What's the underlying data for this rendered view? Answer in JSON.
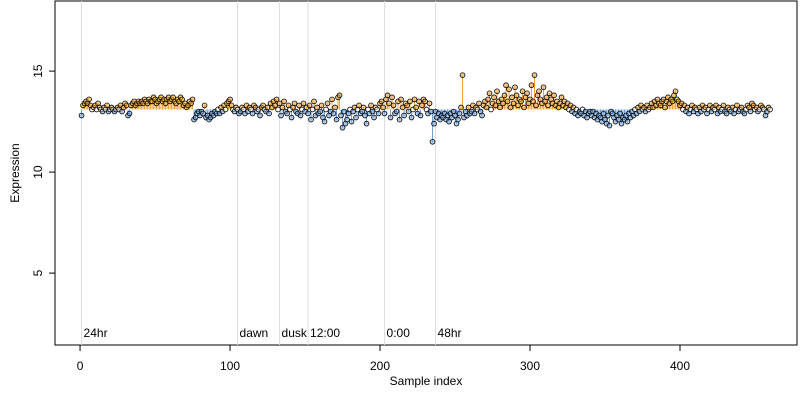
{
  "chart_data": {
    "type": "lollipop",
    "x_label": "Sample index",
    "y_label": "Expression",
    "xlim": [
      -16.7,
      478
    ],
    "ylim": [
      1.44,
      18.47
    ],
    "xticks": [
      0,
      100,
      200,
      300,
      400
    ],
    "yticks": [
      5,
      10,
      15
    ],
    "baseline": 13.1,
    "up_color": "#f0a030",
    "down_color": "#6fa0d8",
    "event_color": "#dddddd",
    "event_label_color": "#aaaaaa",
    "events": [
      {
        "x": 1,
        "label": "24hr"
      },
      {
        "x": 105,
        "label": "dawn"
      },
      {
        "x": 133,
        "label": "dusk"
      },
      {
        "x": 152,
        "label": "12:00"
      },
      {
        "x": 203,
        "label": "0:00"
      },
      {
        "x": 237,
        "label": "48hr"
      }
    ],
    "x": [
      1,
      2,
      3,
      4,
      5,
      6,
      7,
      8,
      9,
      10,
      11,
      12,
      13,
      14,
      15,
      16,
      17,
      18,
      19,
      20,
      21,
      22,
      23,
      24,
      25,
      26,
      27,
      28,
      29,
      30,
      31,
      32,
      33,
      34,
      35,
      36,
      37,
      38,
      39,
      40,
      41,
      42,
      43,
      44,
      45,
      46,
      47,
      48,
      49,
      50,
      51,
      52,
      53,
      54,
      55,
      56,
      57,
      58,
      59,
      60,
      61,
      62,
      63,
      64,
      65,
      66,
      67,
      68,
      69,
      70,
      71,
      72,
      73,
      74,
      75,
      76,
      77,
      78,
      79,
      80,
      81,
      82,
      83,
      84,
      85,
      86,
      87,
      88,
      89,
      90,
      91,
      92,
      93,
      94,
      95,
      96,
      97,
      98,
      99,
      100,
      101,
      102,
      103,
      104,
      105,
      106,
      107,
      108,
      109,
      110,
      111,
      112,
      113,
      114,
      115,
      116,
      117,
      118,
      119,
      120,
      121,
      122,
      123,
      124,
      125,
      126,
      127,
      128,
      129,
      130,
      131,
      132,
      133,
      134,
      135,
      136,
      137,
      138,
      139,
      140,
      141,
      142,
      143,
      144,
      145,
      146,
      147,
      148,
      149,
      150,
      151,
      152,
      153,
      154,
      155,
      156,
      157,
      158,
      159,
      160,
      161,
      162,
      163,
      164,
      165,
      166,
      167,
      168,
      169,
      170,
      171,
      172,
      173,
      174,
      175,
      176,
      177,
      178,
      179,
      180,
      181,
      182,
      183,
      184,
      185,
      186,
      187,
      188,
      189,
      190,
      191,
      192,
      193,
      194,
      195,
      196,
      197,
      198,
      199,
      200,
      201,
      202,
      203,
      204,
      205,
      206,
      207,
      208,
      209,
      210,
      211,
      212,
      213,
      214,
      215,
      216,
      217,
      218,
      219,
      220,
      221,
      222,
      223,
      224,
      225,
      226,
      227,
      228,
      229,
      230,
      231,
      232,
      233,
      234,
      235,
      236,
      237,
      238,
      239,
      240,
      241,
      242,
      243,
      244,
      245,
      246,
      247,
      248,
      249,
      250,
      251,
      252,
      253,
      254,
      255,
      256,
      257,
      258,
      259,
      260,
      261,
      262,
      263,
      264,
      265,
      266,
      267,
      268,
      269,
      270,
      271,
      272,
      273,
      274,
      275,
      276,
      277,
      278,
      279,
      280,
      281,
      282,
      283,
      284,
      285,
      286,
      287,
      288,
      289,
      290,
      291,
      292,
      293,
      294,
      295,
      296,
      297,
      298,
      299,
      300,
      301,
      302,
      303,
      304,
      305,
      306,
      307,
      308,
      309,
      310,
      311,
      312,
      313,
      314,
      315,
      316,
      317,
      318,
      319,
      320,
      321,
      322,
      323,
      324,
      325,
      326,
      327,
      328,
      329,
      330,
      331,
      332,
      333,
      334,
      335,
      336,
      337,
      338,
      339,
      340,
      341,
      342,
      343,
      344,
      345,
      346,
      347,
      348,
      349,
      350,
      351,
      352,
      353,
      354,
      355,
      356,
      357,
      358,
      359,
      360,
      361,
      362,
      363,
      364,
      365,
      366,
      367,
      368,
      369,
      370,
      371,
      372,
      373,
      374,
      375,
      376,
      377,
      378,
      379,
      380,
      381,
      382,
      383,
      384,
      385,
      386,
      387,
      388,
      389,
      390,
      391,
      392,
      393,
      394,
      395,
      396,
      397,
      398,
      399,
      400,
      401,
      402,
      403,
      404,
      405,
      406,
      407,
      408,
      409,
      410,
      411,
      412,
      413,
      414,
      415,
      416,
      417,
      418,
      419,
      420,
      421,
      422,
      423,
      424,
      425,
      426,
      427,
      428,
      429,
      430,
      431,
      432,
      433,
      434,
      435,
      436,
      437,
      438,
      439,
      440,
      441,
      442,
      443,
      444,
      445,
      446,
      447,
      448,
      449,
      450,
      451,
      452,
      453,
      454,
      455,
      456,
      457,
      458,
      459,
      460
    ],
    "values": [
      12.8,
      13.3,
      13.4,
      13.5,
      13.4,
      13.6,
      13.3,
      13.1,
      13.2,
      13.3,
      13.1,
      13.4,
      13.2,
      13.1,
      13.0,
      13.2,
      13.1,
      13.3,
      13.0,
      13.1,
      13.2,
      13.1,
      13.0,
      13.1,
      13.2,
      13.1,
      13.3,
      13.0,
      13.2,
      13.4,
      13.3,
      12.8,
      12.9,
      13.3,
      13.4,
      13.5,
      13.3,
      13.4,
      13.5,
      13.4,
      13.5,
      13.4,
      13.6,
      13.5,
      13.4,
      13.6,
      13.5,
      13.5,
      13.7,
      13.6,
      13.4,
      13.5,
      13.6,
      13.7,
      13.5,
      13.6,
      13.4,
      13.6,
      13.7,
      13.5,
      13.6,
      13.7,
      13.5,
      13.4,
      13.6,
      13.5,
      13.7,
      13.6,
      13.3,
      13.4,
      13.2,
      13.3,
      13.5,
      13.4,
      13.6,
      12.6,
      12.7,
      12.9,
      13.0,
      12.8,
      13.0,
      12.9,
      13.3,
      12.7,
      12.8,
      12.6,
      12.7,
      12.9,
      12.8,
      13.0,
      12.9,
      13.1,
      12.9,
      13.2,
      13.0,
      13.3,
      13.1,
      13.4,
      13.5,
      13.6,
      13.3,
      13.1,
      13.0,
      13.2,
      13.1,
      12.9,
      13.0,
      13.2,
      13.1,
      12.9,
      13.3,
      13.0,
      13.2,
      13.1,
      12.9,
      13.3,
      13.2,
      13.0,
      13.1,
      12.8,
      13.2,
      13.3,
      13.1,
      13.0,
      13.2,
      12.9,
      13.4,
      13.2,
      13.5,
      13.3,
      13.6,
      13.1,
      13.4,
      12.8,
      13.2,
      13.5,
      13.0,
      12.9,
      13.3,
      13.1,
      12.7,
      13.2,
      13.4,
      13.0,
      12.9,
      13.3,
      12.8,
      13.1,
      13.4,
      13.0,
      13.2,
      12.9,
      13.3,
      12.6,
      13.1,
      13.5,
      12.8,
      13.2,
      12.9,
      13.0,
      13.3,
      12.7,
      12.5,
      13.1,
      13.4,
      12.8,
      13.0,
      13.6,
      12.9,
      13.2,
      12.6,
      13.7,
      13.8,
      12.8,
      12.2,
      13.0,
      12.4,
      12.6,
      12.9,
      13.1,
      12.5,
      13.0,
      13.2,
      12.7,
      13.1,
      13.3,
      12.9,
      13.0,
      13.2,
      12.8,
      12.4,
      13.1,
      12.9,
      13.3,
      13.0,
      12.7,
      13.2,
      13.1,
      12.9,
      13.4,
      13.5,
      13.2,
      12.9,
      13.6,
      13.8,
      13.4,
      12.7,
      13.7,
      13.3,
      12.9,
      13.0,
      13.5,
      12.6,
      13.6,
      13.2,
      12.8,
      13.4,
      13.3,
      13.0,
      13.5,
      12.7,
      13.1,
      13.6,
      13.2,
      12.9,
      13.5,
      12.8,
      13.3,
      13.6,
      13.5,
      13.1,
      12.9,
      13.4,
      13.0,
      11.5,
      12.4,
      13.0,
      12.7,
      12.9,
      12.6,
      12.8,
      12.7,
      12.9,
      12.6,
      12.8,
      12.5,
      12.9,
      12.7,
      13.0,
      12.8,
      12.4,
      12.6,
      12.9,
      13.2,
      14.8,
      12.7,
      13.0,
      12.8,
      13.2,
      12.9,
      13.0,
      13.3,
      12.9,
      13.2,
      13.1,
      13.4,
      13.0,
      12.8,
      13.3,
      13.5,
      13.2,
      13.6,
      13.9,
      13.1,
      13.4,
      13.7,
      13.3,
      14.0,
      13.5,
      13.2,
      13.6,
      13.4,
      13.8,
      14.3,
      13.5,
      14.1,
      13.2,
      13.7,
      13.4,
      14.2,
      13.8,
      13.3,
      13.6,
      13.5,
      14.0,
      13.2,
      13.7,
      13.9,
      13.4,
      13.6,
      14.3,
      13.5,
      14.8,
      13.3,
      13.8,
      14.0,
      13.6,
      13.4,
      14.2,
      13.5,
      13.7,
      13.3,
      13.9,
      13.6,
      13.4,
      13.8,
      13.3,
      13.5,
      13.2,
      13.4,
      13.7,
      13.3,
      13.5,
      13.2,
      13.4,
      13.1,
      13.3,
      13.0,
      13.2,
      12.9,
      13.1,
      12.8,
      13.0,
      12.9,
      13.1,
      12.8,
      13.0,
      12.7,
      12.9,
      13.0,
      12.8,
      13.0,
      12.7,
      12.9,
      12.6,
      12.8,
      12.7,
      12.5,
      12.9,
      12.6,
      12.4,
      12.8,
      12.3,
      13.0,
      12.9,
      12.7,
      12.5,
      12.8,
      12.6,
      12.9,
      12.4,
      12.7,
      12.6,
      12.8,
      12.5,
      12.9,
      12.7,
      13.0,
      12.8,
      13.1,
      12.9,
      13.2,
      13.0,
      13.3,
      13.1,
      13.2,
      13.0,
      13.3,
      13.1,
      13.2,
      13.4,
      13.2,
      13.5,
      13.3,
      13.6,
      13.4,
      13.3,
      13.5,
      13.6,
      13.2,
      13.5,
      13.7,
      13.4,
      13.6,
      13.5,
      13.8,
      14.0,
      13.6,
      13.5,
      13.3,
      13.4,
      13.1,
      13.3,
      13.0,
      13.2,
      12.9,
      13.1,
      13.3,
      13.0,
      13.2,
      13.1,
      12.9,
      13.2,
      13.0,
      13.3,
      13.1,
      13.2,
      12.9,
      13.1,
      13.3,
      13.0,
      13.2,
      13.1,
      13.3,
      12.9,
      13.2,
      13.0,
      13.1,
      13.3,
      13.0,
      12.9,
      13.2,
      13.1,
      13.0,
      13.2,
      12.9,
      13.1,
      13.3,
      13.0,
      13.1,
      13.2,
      13.0,
      12.9,
      13.1,
      13.3,
      13.2,
      13.0,
      13.4,
      13.3,
      13.1,
      13.2,
      13.0,
      13.1,
      13.3,
      13.2,
      13.1,
      12.8,
      13.0,
      13.2,
      13.1
    ]
  }
}
